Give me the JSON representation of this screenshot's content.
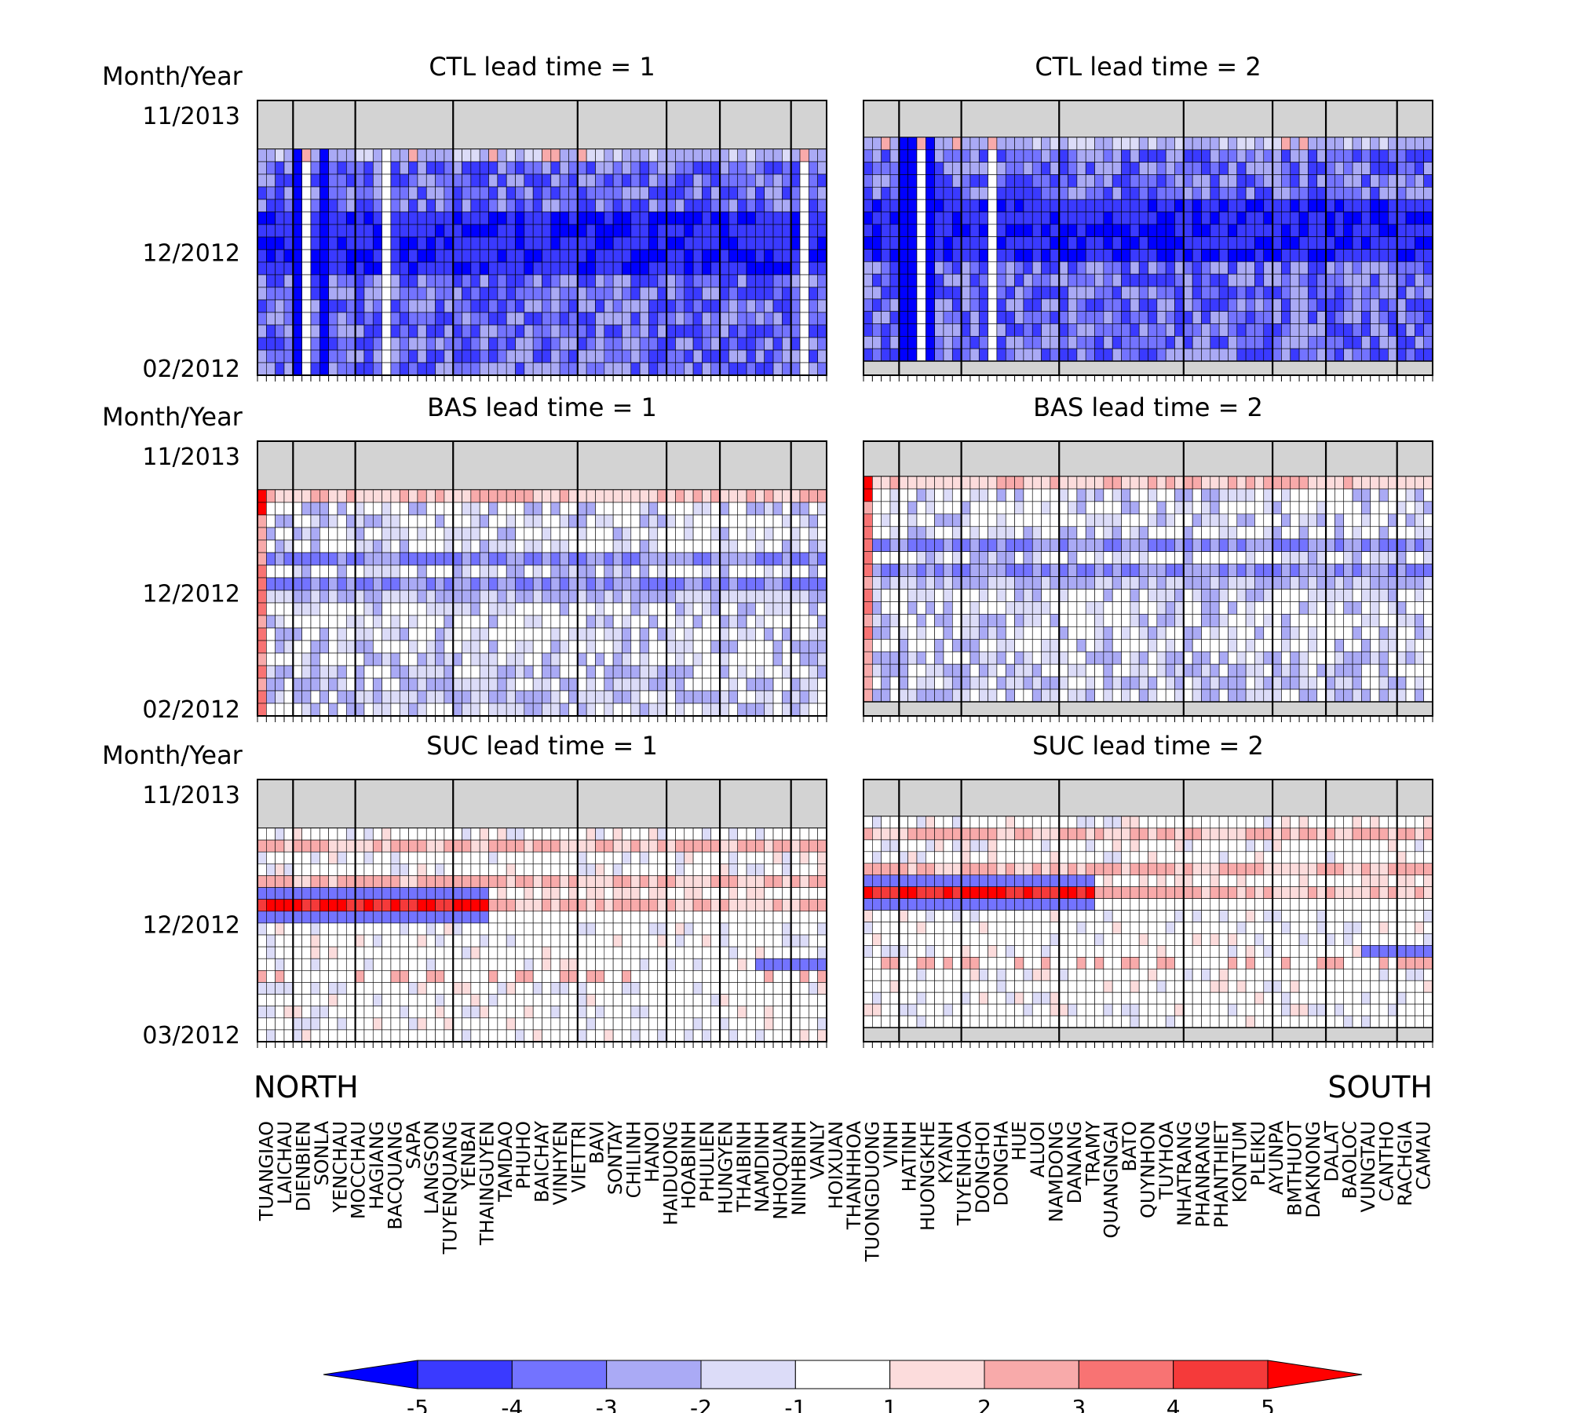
{
  "figure": {
    "region_left": "NORTH",
    "region_right": "SOUTH",
    "colorbar": {
      "levels": [
        "-5",
        "-4",
        "-3",
        "-2",
        "-1",
        "1",
        "2",
        "3",
        "4",
        "5"
      ],
      "colors": [
        "#0000ff",
        "#3a3aff",
        "#7373ff",
        "#aaaaf5",
        "#dcdcf8",
        "#ffffff",
        "#fcdcdc",
        "#f8aaaa",
        "#f87373",
        "#f53a3a",
        "#ff0000"
      ]
    },
    "y_ticks_default": [
      "11/2013",
      "12/2012",
      "02/2012"
    ],
    "y_ticks_suc": [
      "11/2013",
      "12/2012",
      "03/2012"
    ]
  },
  "chart_data": [
    {
      "id": "ctl1",
      "type": "heatmap",
      "title": "CTL lead time = 1",
      "ylabel": "Month/Year",
      "pattern": "strong_negative",
      "lead": 1,
      "stations": []
    },
    {
      "id": "ctl2",
      "type": "heatmap",
      "title": "CTL lead time = 2",
      "ylabel": "",
      "pattern": "strong_negative",
      "lead": 2
    },
    {
      "id": "bas1",
      "type": "heatmap",
      "title": "BAS lead time = 1",
      "ylabel": "Month/Year",
      "pattern": "weak_mixed",
      "lead": 1
    },
    {
      "id": "bas2",
      "type": "heatmap",
      "title": "BAS lead time = 2",
      "ylabel": "",
      "pattern": "weak_mixed",
      "lead": 2
    },
    {
      "id": "suc1",
      "type": "heatmap",
      "title": "SUC lead time = 1",
      "ylabel": "Month/Year",
      "pattern": "suc",
      "lead": 1
    },
    {
      "id": "suc2",
      "type": "heatmap",
      "title": "SUC lead time = 2",
      "ylabel": "",
      "pattern": "suc",
      "lead": 2
    }
  ],
  "stations": [
    "TUANGIAO",
    "LAICHAU",
    "DIENBIEN",
    "SONLA",
    "YENCHAU",
    "MOCCHAU",
    "HAGIANG",
    "BACQUANG",
    "SAPA",
    "LANGSON",
    "TUYENQUANG",
    "YENBAI",
    "THAINGUYEN",
    "TAMDAO",
    "PHUHO",
    "BAICHAY",
    "VINHYEN",
    "VIETTRI",
    "BAVI",
    "SONTAY",
    "CHILINH",
    "HANOI",
    "HAIDUONG",
    "HOABINH",
    "PHULIEN",
    "HUNGYEN",
    "THAIBINH",
    "NAMDINH",
    "NHOQUAN",
    "NINHBINH",
    "VANLY",
    "HOIXUAN",
    "THANHHOA",
    "TUONGDUONG",
    "VINH",
    "HATINH",
    "HUONGKHE",
    "KYANH",
    "TUYENHOA",
    "DONGHOI",
    "DONGHA",
    "HUE",
    "ALUOI",
    "NAMDONG",
    "DANANG",
    "TRAMY",
    "QUANGNGAI",
    "BATO",
    "QUYNHON",
    "TUYHOA",
    "NHATRANG",
    "PHANRANG",
    "PHANTHIET",
    "KONTUM",
    "PLEIKU",
    "AYUNPA",
    "BMTHUOT",
    "DAKNONG",
    "DALAT",
    "BAOLOC",
    "VUNGTAU",
    "CANTHO",
    "RACHGIA",
    "CAMAU"
  ]
}
